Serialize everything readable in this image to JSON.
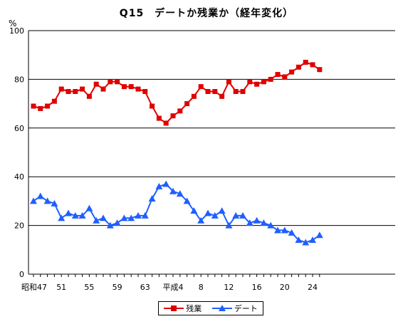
{
  "chart_data": {
    "type": "line",
    "title": "Q15　デートか残業か（経年変化）",
    "y_unit": "%",
    "ylim": [
      0,
      100
    ],
    "yticks": [
      0,
      20,
      40,
      60,
      80,
      100
    ],
    "grid": "horizontal",
    "legend_position": "bottom",
    "x_tick_labels": [
      {
        "index": 0,
        "label": "昭和47"
      },
      {
        "index": 4,
        "label": "51"
      },
      {
        "index": 8,
        "label": "55"
      },
      {
        "index": 12,
        "label": "59"
      },
      {
        "index": 16,
        "label": "63"
      },
      {
        "index": 20,
        "label": "平成4"
      },
      {
        "index": 24,
        "label": "8"
      },
      {
        "index": 28,
        "label": "12"
      },
      {
        "index": 32,
        "label": "16"
      },
      {
        "index": 36,
        "label": "20"
      },
      {
        "index": 40,
        "label": "24"
      }
    ],
    "x": [
      "昭和47",
      "昭和48",
      "昭和49",
      "昭和50",
      "昭和51",
      "昭和52",
      "昭和53",
      "昭和54",
      "昭和55",
      "昭和56",
      "昭和57",
      "昭和58",
      "昭和59",
      "昭和60",
      "昭和61",
      "昭和62",
      "昭和63",
      "平成元",
      "平成2",
      "平成3",
      "平成4",
      "平成5",
      "平成6",
      "平成7",
      "平成8",
      "平成9",
      "平成10",
      "平成11",
      "平成12",
      "平成13",
      "平成14",
      "平成15",
      "平成16",
      "平成17",
      "平成18",
      "平成19",
      "平成20",
      "平成21",
      "平成22",
      "平成23",
      "平成24",
      "平成25"
    ],
    "series": [
      {
        "name": "残業",
        "color": "#e00000",
        "marker": "square",
        "values": [
          69,
          68,
          69,
          71,
          76,
          75,
          75,
          76,
          73,
          78,
          76,
          79,
          79,
          77,
          77,
          76,
          75,
          69,
          64,
          62,
          65,
          67,
          70,
          73,
          77,
          75,
          75,
          73,
          79,
          75,
          75,
          79,
          78,
          79,
          80,
          82,
          81,
          83,
          85,
          87,
          86,
          84
        ]
      },
      {
        "name": "デート",
        "color": "#1f5fff",
        "marker": "triangle",
        "values": [
          30,
          32,
          30,
          29,
          23,
          25,
          24,
          24,
          27,
          22,
          23,
          20,
          21,
          23,
          23,
          24,
          24,
          31,
          36,
          37,
          34,
          33,
          30,
          26,
          22,
          25,
          24,
          26,
          20,
          24,
          24,
          21,
          22,
          21,
          20,
          18,
          18,
          17,
          14,
          13,
          14,
          16
        ]
      }
    ]
  }
}
